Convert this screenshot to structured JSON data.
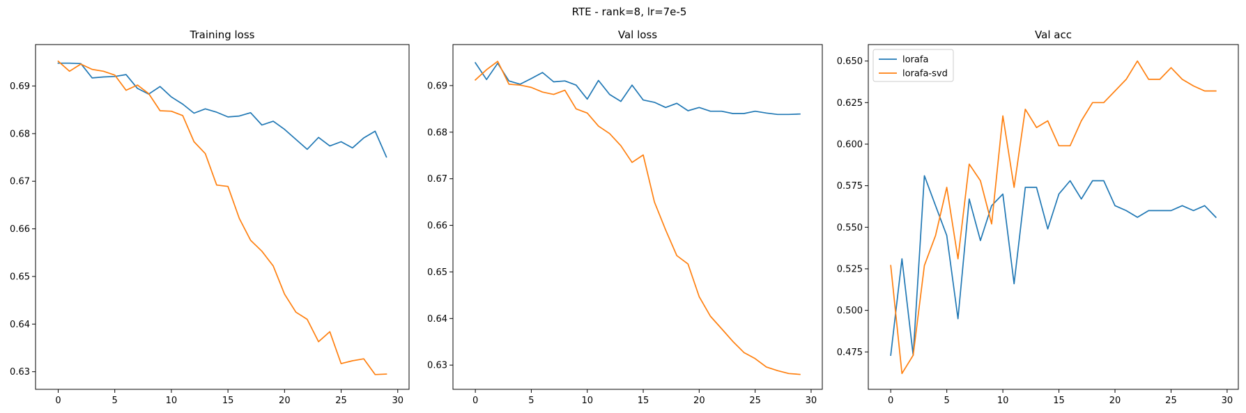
{
  "figure": {
    "suptitle": "RTE - rank=8, lr=7e-5",
    "colors": {
      "lorafa": "#1f77b4",
      "lorafa-svd": "#ff7f0e"
    }
  },
  "chart_data": [
    {
      "type": "line",
      "title": "Training loss",
      "xlabel": "",
      "ylabel": "",
      "xlim": [
        -2,
        31
      ],
      "ylim": [
        0.6263,
        0.6987
      ],
      "xticks": [
        0,
        5,
        10,
        15,
        20,
        25,
        30
      ],
      "yticks": [
        0.63,
        0.64,
        0.65,
        0.66,
        0.67,
        0.68,
        0.69
      ],
      "ytick_labels": [
        "0.63",
        "0.64",
        "0.65",
        "0.66",
        "0.67",
        "0.68",
        "0.69"
      ],
      "x": [
        0,
        1,
        2,
        3,
        4,
        5,
        6,
        7,
        8,
        9,
        10,
        11,
        12,
        13,
        14,
        15,
        16,
        17,
        18,
        19,
        20,
        21,
        22,
        23,
        24,
        25,
        26,
        27,
        28,
        29
      ],
      "series": [
        {
          "name": "lorafa",
          "color": "#1f77b4",
          "values": [
            0.6948,
            0.6948,
            0.6947,
            0.6917,
            0.6919,
            0.692,
            0.6924,
            0.6895,
            0.6883,
            0.6899,
            0.6877,
            0.6862,
            0.6843,
            0.6852,
            0.6845,
            0.6835,
            0.6837,
            0.6844,
            0.6818,
            0.6826,
            0.6809,
            0.6788,
            0.6767,
            0.6792,
            0.6774,
            0.6783,
            0.677,
            0.6791,
            0.6805,
            0.6751
          ]
        },
        {
          "name": "lorafa-svd",
          "color": "#ff7f0e",
          "values": [
            0.6952,
            0.6931,
            0.6946,
            0.6935,
            0.6931,
            0.6923,
            0.6891,
            0.6902,
            0.6884,
            0.6848,
            0.6847,
            0.6838,
            0.6783,
            0.6758,
            0.6692,
            0.6689,
            0.6622,
            0.6576,
            0.6553,
            0.6522,
            0.6463,
            0.6425,
            0.641,
            0.6363,
            0.6384,
            0.6317,
            0.6323,
            0.6327,
            0.6294,
            0.6295
          ]
        }
      ],
      "legend": null
    },
    {
      "type": "line",
      "title": "Val loss",
      "xlabel": "",
      "ylabel": "",
      "xlim": [
        -2,
        31
      ],
      "ylim": [
        0.6248,
        0.6988
      ],
      "xticks": [
        0,
        5,
        10,
        15,
        20,
        25,
        30
      ],
      "yticks": [
        0.63,
        0.64,
        0.65,
        0.66,
        0.67,
        0.68,
        0.69
      ],
      "ytick_labels": [
        "0.63",
        "0.64",
        "0.65",
        "0.66",
        "0.67",
        "0.68",
        "0.69"
      ],
      "x": [
        0,
        1,
        2,
        3,
        4,
        5,
        6,
        7,
        8,
        9,
        10,
        11,
        12,
        13,
        14,
        15,
        16,
        17,
        18,
        19,
        20,
        21,
        22,
        23,
        24,
        25,
        26,
        27,
        28,
        29
      ],
      "series": [
        {
          "name": "lorafa",
          "color": "#1f77b4",
          "values": [
            0.6949,
            0.6913,
            0.6948,
            0.691,
            0.6903,
            0.6915,
            0.6928,
            0.6908,
            0.691,
            0.6901,
            0.6871,
            0.6911,
            0.6881,
            0.6866,
            0.6901,
            0.6869,
            0.6864,
            0.6853,
            0.6862,
            0.6846,
            0.6853,
            0.6845,
            0.6845,
            0.684,
            0.684,
            0.6845,
            0.6841,
            0.6838,
            0.6838,
            0.6839
          ]
        },
        {
          "name": "lorafa-svd",
          "color": "#ff7f0e",
          "values": [
            0.6912,
            0.6934,
            0.6952,
            0.6903,
            0.6901,
            0.6896,
            0.6886,
            0.6881,
            0.689,
            0.685,
            0.6841,
            0.6813,
            0.6797,
            0.6771,
            0.6735,
            0.6751,
            0.665,
            0.659,
            0.6535,
            0.6517,
            0.6447,
            0.6405,
            0.6378,
            0.6351,
            0.6327,
            0.6314,
            0.6296,
            0.6288,
            0.6282,
            0.628
          ]
        }
      ],
      "legend": null
    },
    {
      "type": "line",
      "title": "Val acc",
      "xlabel": "",
      "ylabel": "",
      "xlim": [
        -2,
        31
      ],
      "ylim": [
        0.4525,
        0.6599
      ],
      "xticks": [
        0,
        5,
        10,
        15,
        20,
        25,
        30
      ],
      "yticks": [
        0.475,
        0.5,
        0.525,
        0.55,
        0.575,
        0.6,
        0.625,
        0.65
      ],
      "ytick_labels": [
        "0.475",
        "0.500",
        "0.525",
        "0.550",
        "0.575",
        "0.600",
        "0.625",
        "0.650"
      ],
      "x": [
        0,
        1,
        2,
        3,
        4,
        5,
        6,
        7,
        8,
        9,
        10,
        11,
        12,
        13,
        14,
        15,
        16,
        17,
        18,
        19,
        20,
        21,
        22,
        23,
        24,
        25,
        26,
        27,
        28,
        29
      ],
      "series": [
        {
          "name": "lorafa",
          "color": "#1f77b4",
          "values": [
            0.473,
            0.531,
            0.473,
            0.581,
            0.563,
            0.545,
            0.495,
            0.567,
            0.542,
            0.563,
            0.57,
            0.516,
            0.574,
            0.574,
            0.549,
            0.57,
            0.578,
            0.567,
            0.578,
            0.578,
            0.563,
            0.56,
            0.556,
            0.56,
            0.56,
            0.56,
            0.563,
            0.56,
            0.563,
            0.556
          ]
        },
        {
          "name": "lorafa-svd",
          "color": "#ff7f0e",
          "values": [
            0.527,
            0.462,
            0.473,
            0.527,
            0.545,
            0.574,
            0.531,
            0.588,
            0.578,
            0.552,
            0.617,
            0.574,
            0.621,
            0.61,
            0.614,
            0.599,
            0.599,
            0.614,
            0.625,
            0.625,
            0.632,
            0.639,
            0.65,
            0.639,
            0.639,
            0.646,
            0.639,
            0.635,
            0.632,
            0.632
          ]
        }
      ],
      "legend": {
        "loc": "upper left",
        "entries": [
          "lorafa",
          "lorafa-svd"
        ]
      }
    }
  ]
}
